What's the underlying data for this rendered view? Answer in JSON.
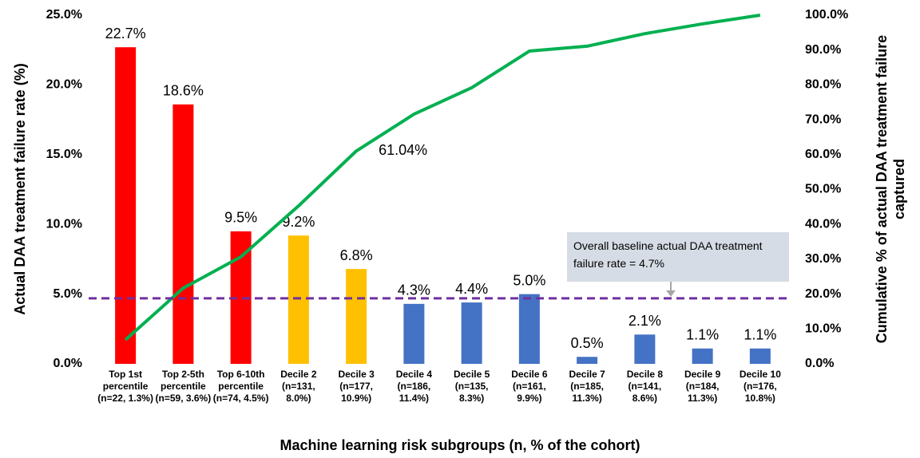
{
  "chart_data": {
    "type": "bar",
    "categories": [
      "Top 1st percentile (n=22, 1.3%)",
      "Top 2-5th percentile (n=59, 3.6%)",
      "Top 6-10th percentile (n=74, 4.5%)",
      "Decile 2 (n=131, 8.0%)",
      "Decile 3 (n=177, 10.9%)",
      "Decile 4 (n=186, 11.4%)",
      "Decile 5 (n=135, 8.3%)",
      "Decile 6 (n=161, 9.9%)",
      "Decile 7 (n=185, 11.3%)",
      "Decile 8 (n=141, 8.6%)",
      "Decile 9 (n=184, 11.3%)",
      "Decile 10 (n=176, 10.8%)"
    ],
    "series": [
      {
        "type": "bar",
        "values": [
          22.7,
          18.6,
          9.5,
          9.2,
          6.8,
          4.3,
          4.4,
          5.0,
          0.5,
          2.1,
          1.1,
          1.1
        ],
        "value_labels": [
          "22.7%",
          "18.6%",
          "9.5%",
          "9.2%",
          "6.8%",
          "4.3%",
          "4.4%",
          "5.0%",
          "0.5%",
          "2.1%",
          "1.1%",
          "1.1%"
        ],
        "colors": [
          "#ff0000",
          "#ff0000",
          "#ff0000",
          "#ffc000",
          "#ffc000",
          "#4472c4",
          "#4472c4",
          "#4472c4",
          "#4472c4",
          "#4472c4",
          "#4472c4",
          "#4472c4"
        ]
      },
      {
        "type": "line",
        "axis": "y2",
        "color": "#00b050",
        "values": [
          6.9,
          21.7,
          30.7,
          45.3,
          61.04,
          71.6,
          79.2,
          89.7,
          91.1,
          94.7,
          97.5,
          100
        ],
        "value_labels": [
          null,
          null,
          null,
          null,
          "61.04%",
          null,
          null,
          null,
          null,
          null,
          null,
          null
        ]
      }
    ],
    "xlabel": "Machine learning risk subgroups (n, % of the cohort)",
    "ylabel": "Actual DAA treatment failure rate (%)",
    "y2label": "Cumulative % of actual DAA treatment failure captured",
    "ylim": [
      0,
      25
    ],
    "yticks": [
      {
        "value": 0,
        "label": "0.0%"
      },
      {
        "value": 5,
        "label": "5.0%"
      },
      {
        "value": 10,
        "label": "10.0%"
      },
      {
        "value": 15,
        "label": "15.0%"
      },
      {
        "value": 20,
        "label": "20.0%"
      },
      {
        "value": 25,
        "label": "25.0%"
      }
    ],
    "y2lim": [
      0,
      100
    ],
    "y2ticks": [
      {
        "value": 0,
        "label": "0.0%"
      },
      {
        "value": 10,
        "label": "10.0%"
      },
      {
        "value": 20,
        "label": "20.0%"
      },
      {
        "value": 30,
        "label": "30.0%"
      },
      {
        "value": 40,
        "label": "40.0%"
      },
      {
        "value": 50,
        "label": "50.0%"
      },
      {
        "value": 60,
        "label": "60.0%"
      },
      {
        "value": 70,
        "label": "70.0%"
      },
      {
        "value": 80,
        "label": "80.0%"
      },
      {
        "value": 90,
        "label": "90.0%"
      },
      {
        "value": 100,
        "label": "100.0%"
      }
    ],
    "reference_line": {
      "value": 4.7,
      "color": "#7030a0",
      "label": "Overall baseline actual DAA treatment failure rate = 4.7%"
    }
  }
}
